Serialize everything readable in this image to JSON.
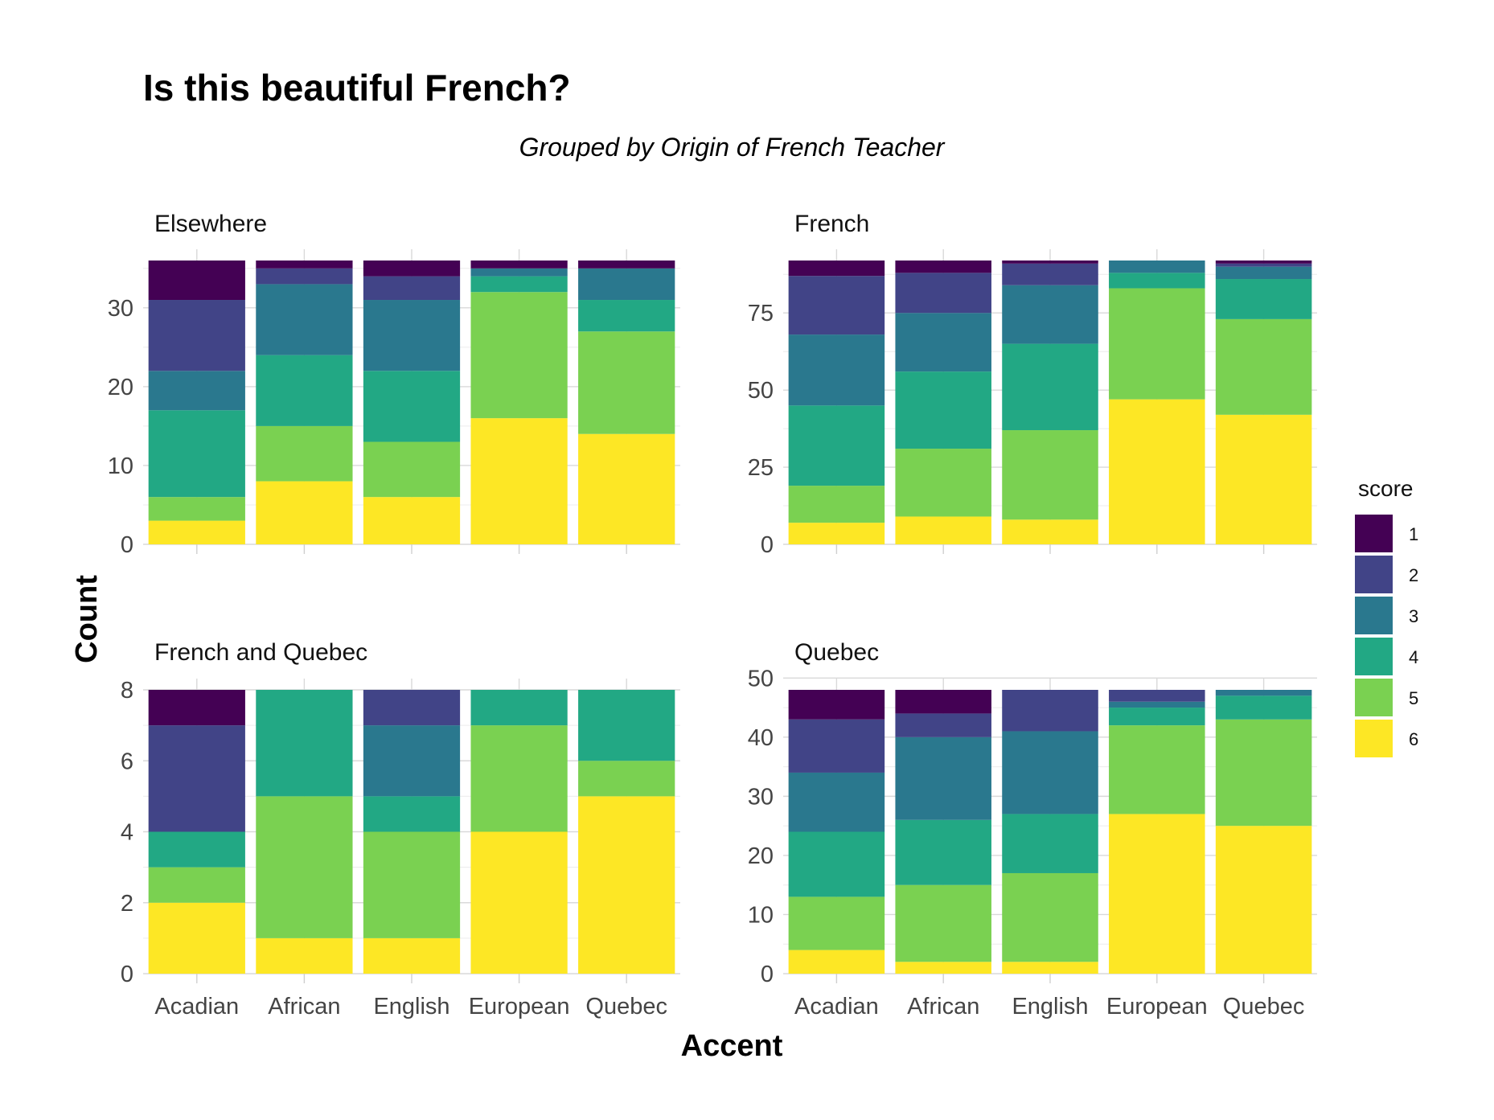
{
  "chart_data": {
    "type": "bar",
    "stacked": true,
    "title": "Is this beautiful French?",
    "subtitle": "Grouped by Origin of French Teacher",
    "xlabel": "Accent",
    "ylabel": "Count",
    "legend": {
      "title": "score",
      "position": "right",
      "entries": [
        {
          "label": "1",
          "color": "#440154"
        },
        {
          "label": "2",
          "color": "#414487"
        },
        {
          "label": "3",
          "color": "#2A788E"
        },
        {
          "label": "4",
          "color": "#22A884"
        },
        {
          "label": "5",
          "color": "#7AD151"
        },
        {
          "label": "6",
          "color": "#FDE725"
        }
      ]
    },
    "categories": [
      "Acadian",
      "African",
      "English",
      "European",
      "Quebec"
    ],
    "panels": [
      {
        "name": "Elsewhere",
        "ylim": [
          0,
          36
        ],
        "yticks": [
          0,
          10,
          20,
          30
        ],
        "series": [
          {
            "name": "6",
            "values": [
              3,
              8,
              6,
              16,
              14
            ]
          },
          {
            "name": "5",
            "values": [
              3,
              7,
              7,
              16,
              13
            ]
          },
          {
            "name": "4",
            "values": [
              11,
              9,
              9,
              2,
              4
            ]
          },
          {
            "name": "3",
            "values": [
              5,
              9,
              9,
              1,
              4
            ]
          },
          {
            "name": "2",
            "values": [
              9,
              2,
              3,
              0,
              0
            ]
          },
          {
            "name": "1",
            "values": [
              5,
              1,
              2,
              1,
              1
            ]
          }
        ]
      },
      {
        "name": "French",
        "ylim": [
          0,
          92
        ],
        "yticks": [
          0,
          25,
          50,
          75
        ],
        "series": [
          {
            "name": "6",
            "values": [
              7,
              9,
              8,
              47,
              42
            ]
          },
          {
            "name": "5",
            "values": [
              12,
              22,
              29,
              36,
              31
            ]
          },
          {
            "name": "4",
            "values": [
              26,
              25,
              28,
              5,
              13
            ]
          },
          {
            "name": "3",
            "values": [
              23,
              19,
              19,
              4,
              4
            ]
          },
          {
            "name": "2",
            "values": [
              19,
              13,
              7,
              0,
              1
            ]
          },
          {
            "name": "1",
            "values": [
              5,
              4,
              1,
              0,
              1
            ]
          }
        ]
      },
      {
        "name": "French and Quebec",
        "ylim": [
          0,
          8
        ],
        "yticks": [
          0,
          2,
          4,
          6,
          8
        ],
        "series": [
          {
            "name": "6",
            "values": [
              2,
              1,
              1,
              4,
              5
            ]
          },
          {
            "name": "5",
            "values": [
              1,
              4,
              3,
              3,
              1
            ]
          },
          {
            "name": "4",
            "values": [
              1,
              3,
              1,
              1,
              2
            ]
          },
          {
            "name": "3",
            "values": [
              0,
              0,
              2,
              0,
              0
            ]
          },
          {
            "name": "2",
            "values": [
              3,
              0,
              1,
              0,
              0
            ]
          },
          {
            "name": "1",
            "values": [
              1,
              0,
              0,
              0,
              0
            ]
          }
        ]
      },
      {
        "name": "Quebec",
        "ylim": [
          0,
          48
        ],
        "yticks": [
          0,
          10,
          20,
          30,
          40,
          50
        ],
        "series": [
          {
            "name": "6",
            "values": [
              4,
              2,
              2,
              27,
              25
            ]
          },
          {
            "name": "5",
            "values": [
              9,
              13,
              15,
              15,
              18
            ]
          },
          {
            "name": "4",
            "values": [
              11,
              11,
              10,
              3,
              4
            ]
          },
          {
            "name": "3",
            "values": [
              10,
              14,
              14,
              1,
              1
            ]
          },
          {
            "name": "2",
            "values": [
              9,
              4,
              7,
              2,
              0
            ]
          },
          {
            "name": "1",
            "values": [
              5,
              4,
              0,
              0,
              0
            ]
          }
        ]
      }
    ]
  }
}
